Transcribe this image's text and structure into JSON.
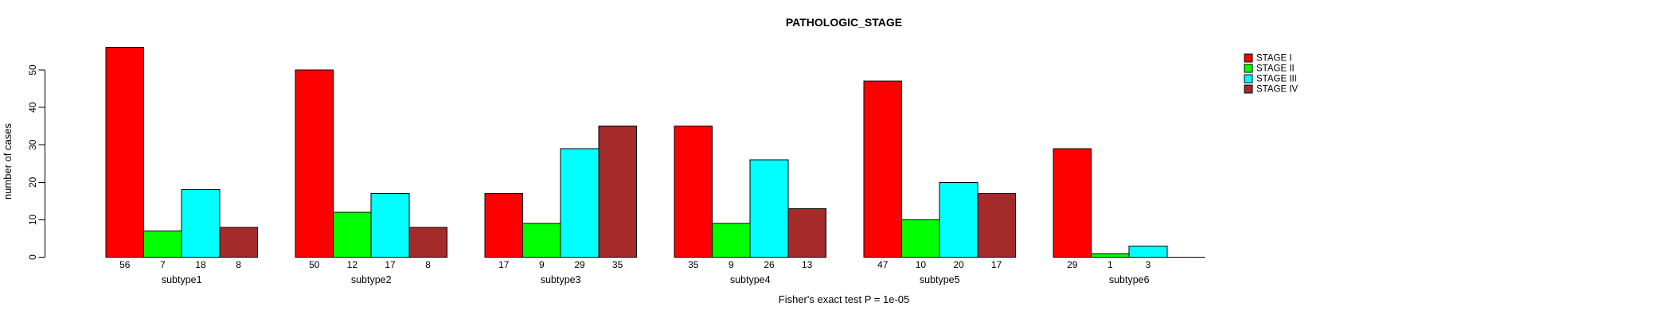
{
  "chart_data": {
    "type": "bar",
    "title": "PATHOLOGIC_STAGE",
    "ylabel": "number of cases",
    "xlabel": "",
    "footnote": "Fisher's exact test P = 1e-05",
    "categories": [
      "subtype1",
      "subtype2",
      "subtype3",
      "subtype4",
      "subtype5",
      "subtype6"
    ],
    "series": [
      {
        "name": "STAGE I",
        "color": "#ff0000",
        "values": [
          56,
          50,
          17,
          35,
          47,
          29
        ]
      },
      {
        "name": "STAGE II",
        "color": "#00ff00",
        "values": [
          7,
          12,
          9,
          9,
          10,
          1
        ]
      },
      {
        "name": "STAGE III",
        "color": "#00ffff",
        "values": [
          18,
          17,
          29,
          26,
          20,
          3
        ]
      },
      {
        "name": "STAGE IV",
        "color": "#a52a2a",
        "values": [
          8,
          8,
          35,
          13,
          17,
          0
        ]
      }
    ],
    "bar_value_labels": [
      [
        "56",
        "7",
        "18",
        "8"
      ],
      [
        "50",
        "12",
        "17",
        "8"
      ],
      [
        "17",
        "9",
        "29",
        "35"
      ],
      [
        "35",
        "9",
        "26",
        "13"
      ],
      [
        "47",
        "10",
        "20",
        "17"
      ],
      [
        "29",
        "1",
        "3",
        ""
      ]
    ],
    "yticks": [
      0,
      10,
      20,
      30,
      40,
      50
    ],
    "ylim": [
      0,
      56
    ],
    "grid": "off",
    "legend_position": "right",
    "bar_border_color": "#000000",
    "axis_color": "#000000"
  }
}
